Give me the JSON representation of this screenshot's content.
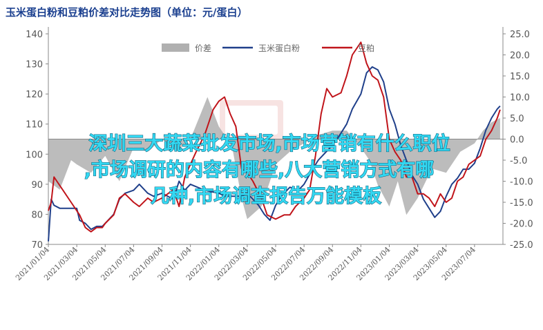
{
  "chart_data": {
    "type": "line",
    "title": "玉米蛋白粉和豆粕价差对比走势图（单位：元/蛋白）",
    "x_tick_labels": [
      "2021/01/04",
      "2021/03/04",
      "2021/05/04",
      "2021/07/04",
      "2021/09/04",
      "2021/11/04",
      "2022/01/04",
      "2022/03/04",
      "2022/05/04",
      "2022/07/04",
      "2022/09/04",
      "2022/11/04",
      "2023/01/04",
      "2023/03/04",
      "2023/05/04",
      "2023/07/04"
    ],
    "left_axis": {
      "ylim": [
        70,
        140
      ],
      "ticks": [
        "140",
        "130",
        "120",
        "110",
        "100",
        "90",
        "80",
        "70"
      ]
    },
    "right_axis": {
      "ylim": [
        -25,
        25
      ],
      "ticks": [
        "25.0",
        "20.0",
        "15.0",
        "10.0",
        "5.0",
        "0.0",
        "-5.0",
        "-10.0",
        "-15.0",
        "-20.0",
        "-25.0"
      ]
    },
    "grid": false,
    "legend_position": "top-center",
    "series": [
      {
        "name": "价差",
        "kind": "area",
        "axis": "right",
        "color": "#b0b0b0",
        "x": [
          0.0,
          0.4,
          0.8,
          1.0,
          1.5,
          2.0,
          2.5,
          3.0,
          3.5,
          4.0,
          4.5,
          5.0,
          5.3,
          5.6,
          6.0,
          6.3,
          6.5,
          6.8,
          7.0,
          7.5,
          8.0,
          8.5,
          9.0,
          9.5,
          10.0,
          10.5,
          11.0,
          11.3,
          11.6,
          12.0,
          12.3,
          12.6,
          13.0,
          13.5,
          14.0,
          14.5,
          15.0,
          15.3,
          15.6,
          15.9
        ],
        "values": [
          -10,
          -12,
          -5,
          -6,
          -8,
          -4,
          -10,
          -2,
          -3,
          0,
          -3,
          0,
          5,
          10,
          3,
          0,
          -3,
          -14,
          -19,
          -16,
          -6,
          -3,
          -1,
          1,
          2,
          2,
          -2,
          -5,
          -11,
          -16,
          -10,
          -18,
          -14,
          -7,
          -8,
          -3,
          -1,
          2,
          4,
          5
        ]
      },
      {
        "name": "玉米蛋白粉",
        "kind": "line",
        "axis": "left",
        "color": "#1f3f8a",
        "x": [
          0.0,
          0.1,
          0.2,
          0.4,
          0.6,
          0.9,
          1.0,
          1.1,
          1.3,
          1.5,
          1.7,
          1.9,
          2.0,
          2.3,
          2.5,
          2.7,
          3.0,
          3.2,
          3.5,
          3.7,
          4.0,
          4.2,
          4.4,
          4.6,
          4.8,
          5.0,
          5.5,
          6.0,
          6.2,
          6.5,
          6.8,
          7.0,
          7.2,
          7.4,
          7.6,
          7.8,
          8.0,
          8.2,
          8.5,
          8.8,
          9.0,
          9.3,
          9.5,
          9.7,
          10.0,
          10.3,
          10.5,
          10.7,
          11.0,
          11.2,
          11.4,
          11.6,
          11.8,
          12.0,
          12.2,
          12.4,
          12.6,
          12.8,
          13.0,
          13.2,
          13.4,
          13.6,
          13.8,
          14.0,
          14.2,
          14.4,
          14.6,
          14.8,
          15.0,
          15.2,
          15.4,
          15.6,
          15.8,
          15.9
        ],
        "values": [
          71,
          85,
          83,
          82,
          82,
          82,
          82,
          78,
          77,
          75,
          76,
          76,
          77,
          80,
          85,
          87,
          88,
          90,
          87,
          86,
          87,
          86,
          85,
          91,
          88,
          90,
          88,
          87,
          86,
          86,
          86,
          87,
          85,
          83,
          80,
          78,
          83,
          86,
          89,
          88,
          90,
          95,
          98,
          100,
          103,
          107,
          110,
          115,
          120,
          127,
          129,
          128,
          124,
          115,
          110,
          103,
          98,
          93,
          90,
          85,
          82,
          79,
          81,
          86,
          90,
          92,
          95,
          95,
          97,
          102,
          108,
          112,
          115,
          116
        ]
      },
      {
        "name": "豆粕",
        "kind": "line",
        "axis": "right",
        "color": "#c0141a",
        "x": [
          0.0,
          0.1,
          0.2,
          0.3,
          0.5,
          0.8,
          1.0,
          1.1,
          1.3,
          1.5,
          1.7,
          1.9,
          2.0,
          2.3,
          2.5,
          2.7,
          3.0,
          3.2,
          3.5,
          3.7,
          4.0,
          4.2,
          4.4,
          4.6,
          4.8,
          5.0,
          5.2,
          5.5,
          5.8,
          6.0,
          6.2,
          6.4,
          6.6,
          6.8,
          7.0,
          7.2,
          7.5,
          7.7,
          8.0,
          8.3,
          8.5,
          8.7,
          9.0,
          9.2,
          9.4,
          9.6,
          9.8,
          10.0,
          10.3,
          10.5,
          10.7,
          11.0,
          11.2,
          11.4,
          11.6,
          11.8,
          12.0,
          12.2,
          12.4,
          12.6,
          12.8,
          13.0,
          13.2,
          13.4,
          13.6,
          13.8,
          14.0,
          14.2,
          14.4,
          14.6,
          14.8,
          15.0,
          15.2,
          15.4,
          15.6,
          15.8,
          15.9
        ],
        "values": [
          -17,
          -15,
          -9,
          -10,
          -12,
          -15,
          -17,
          -18,
          -21,
          -22,
          -21,
          -21,
          -20,
          -18,
          -14,
          -13,
          -15,
          -16,
          -14,
          -15,
          -14,
          -13,
          -12,
          -16,
          -9,
          -6,
          -3,
          1,
          7,
          9,
          10,
          6,
          3,
          -7,
          -8,
          -10,
          -14,
          -18,
          -19,
          -18,
          -18,
          -16,
          -14,
          -12,
          -4,
          6,
          12,
          10,
          11,
          15,
          20,
          23,
          18,
          15,
          14,
          10,
          0,
          -3,
          -5,
          -9,
          -9,
          -13,
          -13,
          -14,
          -16,
          -13,
          -15,
          -14,
          -10,
          -9,
          -6,
          -5,
          -4,
          0,
          2,
          5,
          7
        ]
      }
    ]
  },
  "overlay": {
    "lines": [
      "深圳三大蔬菜批发市场,市场营销有什么职位",
      ",市场调研的内容有哪些,八大营销方式有哪",
      "几种,市场调查报告万能模板"
    ]
  },
  "colors": {
    "axis": "#888888",
    "watermark": "#c8302a"
  }
}
